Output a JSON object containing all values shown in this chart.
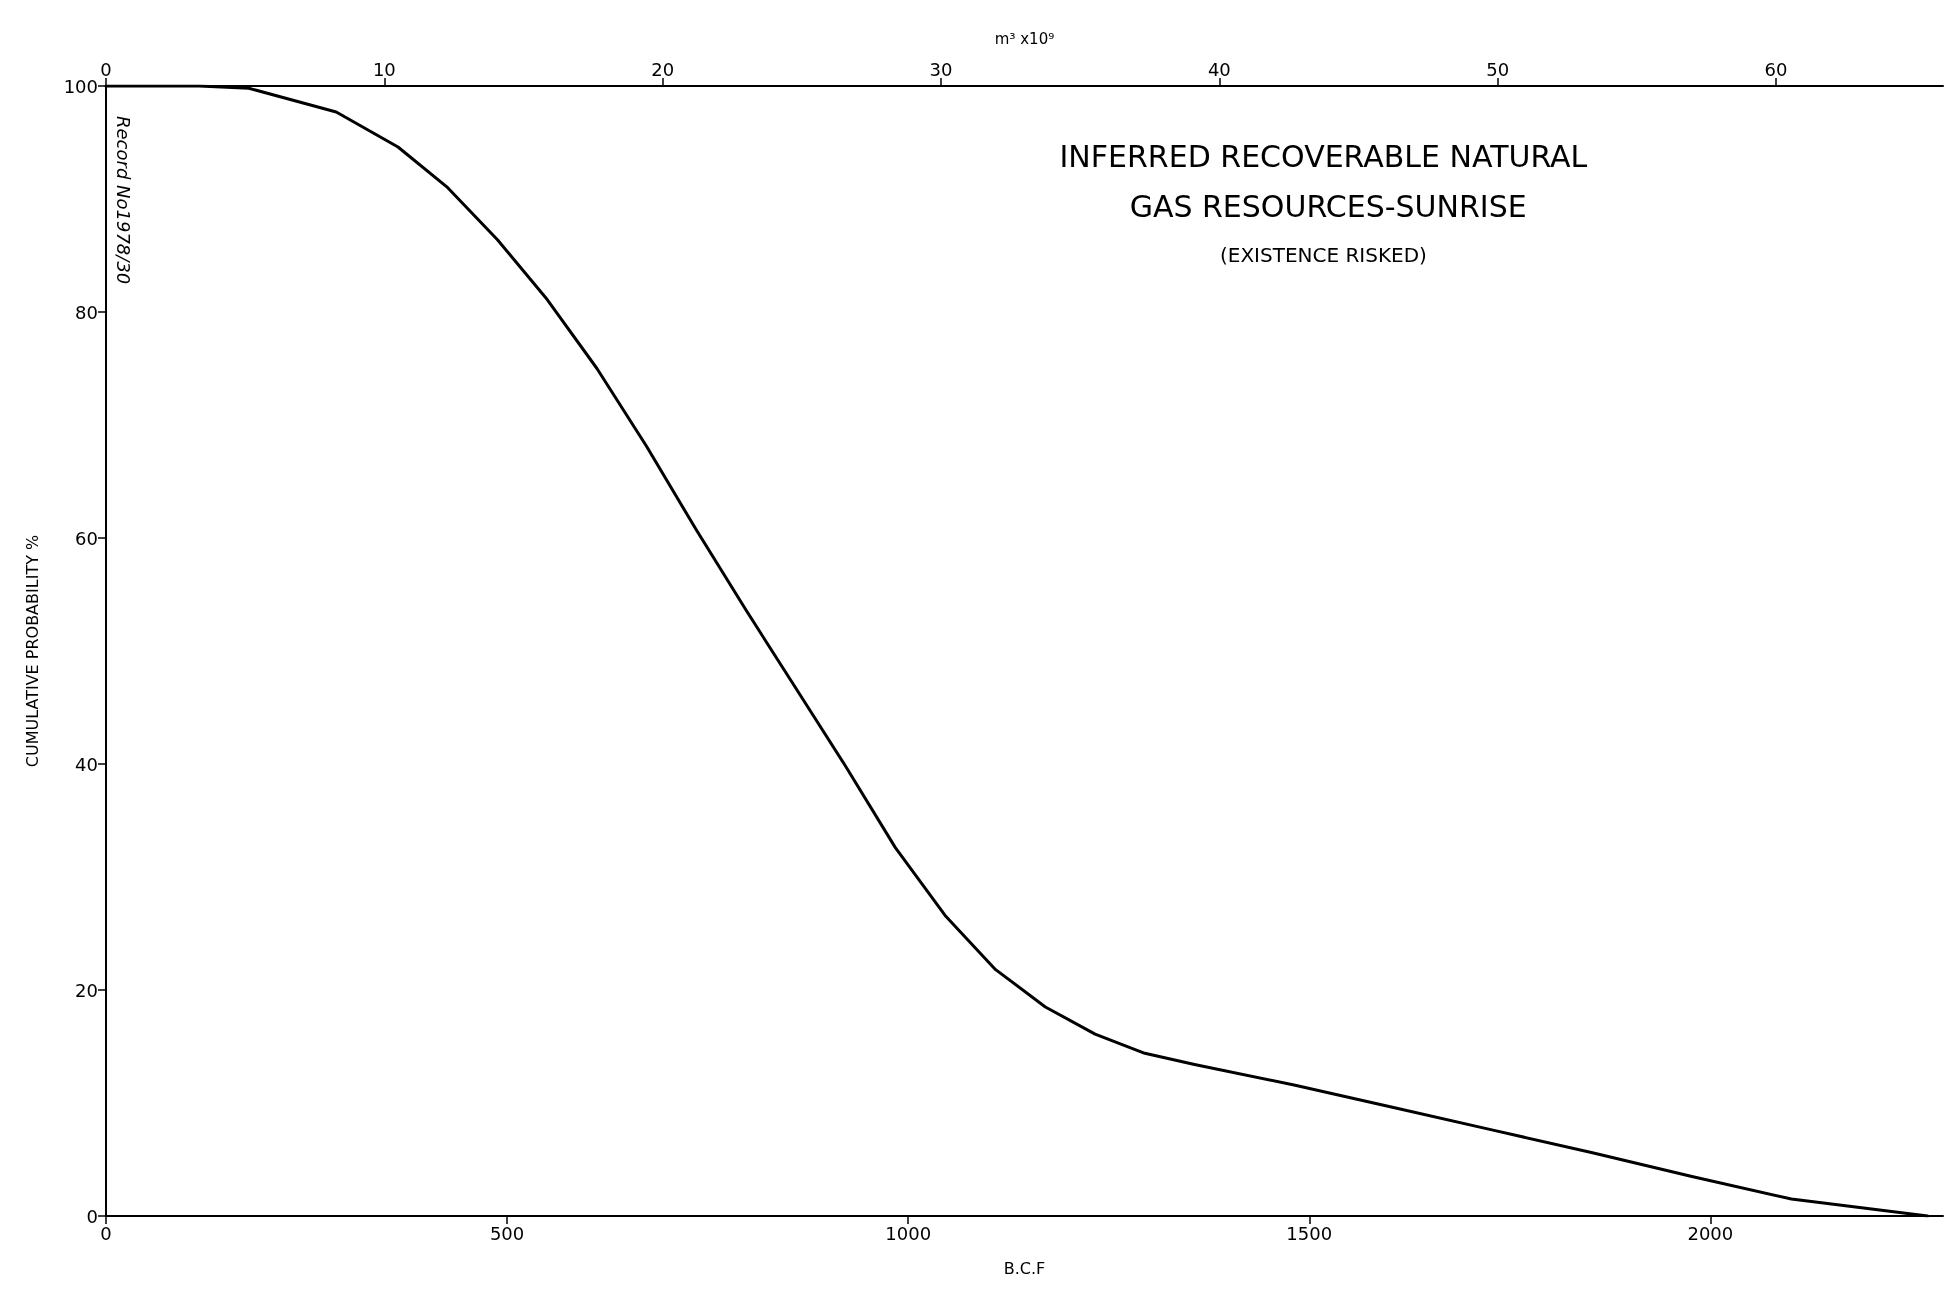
{
  "chart_data": {
    "type": "line",
    "title": "INFERRED RECOVERABLE NATURAL GAS RESOURCES-SUNRISE",
    "subtitle": "(EXISTENCE RISKED)",
    "xlabel": "B.C.F",
    "ylabel": "CUMULATIVE PROBABILITY %",
    "x2label": "m³ x10⁹",
    "annotations": [
      "Record No1978/30"
    ],
    "x": [
      0,
      116,
      178,
      287,
      364,
      426,
      488,
      550,
      612,
      674,
      736,
      798,
      860,
      922,
      984,
      1046,
      1109,
      1171,
      1233,
      1295,
      1357,
      1481,
      1605,
      1729,
      1853,
      1977,
      2101,
      2271
    ],
    "series": [
      {
        "color": "#000000",
        "values": [
          100,
          100,
          99.8,
          97.7,
          94.6,
          91,
          86.4,
          81.1,
          75,
          68.1,
          60.7,
          53.6,
          46.7,
          39.8,
          32.6,
          26.6,
          21.8,
          18.5,
          16.1,
          14.4,
          13.4,
          11.6,
          9.6,
          7.6,
          5.6,
          3.5,
          1.5,
          0
        ]
      }
    ],
    "xlim": [
      0,
      2290
    ],
    "xticks": [
      0,
      500,
      1000,
      1500,
      2000
    ],
    "x2lim": [
      0,
      66
    ],
    "x2ticks": [
      0,
      10,
      20,
      30,
      40,
      50,
      60
    ],
    "ylim": [
      0,
      100
    ],
    "yticks": [
      0,
      20,
      40,
      60,
      80,
      100
    ],
    "grid": false,
    "marker": "none",
    "line_style": "solid"
  }
}
